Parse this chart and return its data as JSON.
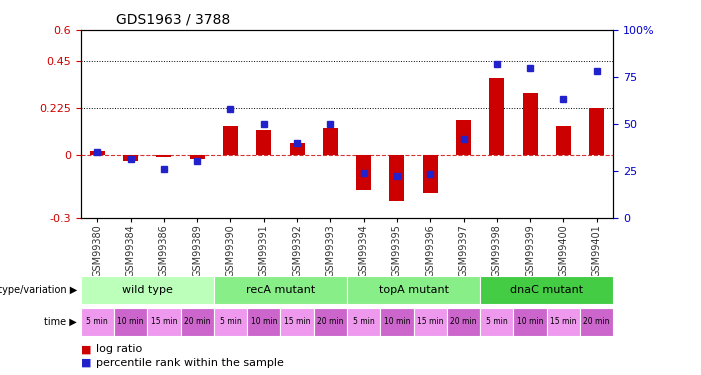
{
  "title": "GDS1963 / 3788",
  "samples": [
    "GSM99380",
    "GSM99384",
    "GSM99386",
    "GSM99389",
    "GSM99390",
    "GSM99391",
    "GSM99392",
    "GSM99393",
    "GSM99394",
    "GSM99395",
    "GSM99396",
    "GSM99397",
    "GSM99398",
    "GSM99399",
    "GSM99400",
    "GSM99401"
  ],
  "log_ratio": [
    0.02,
    -0.03,
    -0.01,
    -0.02,
    0.14,
    0.12,
    0.06,
    0.13,
    -0.17,
    -0.22,
    -0.18,
    0.17,
    0.37,
    0.3,
    0.14,
    0.225
  ],
  "percentile_rank": [
    35,
    31,
    26,
    30,
    58,
    50,
    40,
    50,
    24,
    22,
    23,
    42,
    82,
    80,
    63,
    78
  ],
  "ylim_left": [
    -0.3,
    0.6
  ],
  "ylim_right": [
    0,
    100
  ],
  "yticks_left": [
    -0.3,
    0.0,
    0.225,
    0.45,
    0.6
  ],
  "yticks_right": [
    0,
    25,
    50,
    75,
    100
  ],
  "hlines": [
    0.225,
    0.45
  ],
  "bar_color": "#CC0000",
  "marker_color": "#2222CC",
  "zero_line_color": "#CC0000",
  "groups": [
    {
      "label": "wild type",
      "start": 0,
      "end": 4
    },
    {
      "label": "recA mutant",
      "start": 4,
      "end": 8
    },
    {
      "label": "topA mutant",
      "start": 8,
      "end": 12
    },
    {
      "label": "dnaC mutant",
      "start": 12,
      "end": 16
    }
  ],
  "group_colors": [
    "#bbffbb",
    "#88ee88",
    "#88ee88",
    "#44cc44"
  ],
  "time_labels": [
    "5 min",
    "10 min",
    "15 min",
    "20 min",
    "5 min",
    "10 min",
    "15 min",
    "20 min",
    "5 min",
    "10 min",
    "15 min",
    "20 min",
    "5 min",
    "10 min",
    "15 min",
    "20 min"
  ],
  "time_colors": [
    "#ee99ee",
    "#cc66cc",
    "#ee99ee",
    "#cc66cc",
    "#ee99ee",
    "#cc66cc",
    "#ee99ee",
    "#cc66cc",
    "#ee99ee",
    "#cc66cc",
    "#ee99ee",
    "#cc66cc",
    "#ee99ee",
    "#cc66cc",
    "#ee99ee",
    "#cc66cc"
  ],
  "tick_label_color": "#333333",
  "axis_label_color": "#CC0000",
  "right_axis_label_color": "#0000CC",
  "background_color": "#ffffff",
  "plot_bg_color": "#ffffff",
  "geno_row_bg": "#cccccc",
  "time_row_bg": "#cccccc"
}
